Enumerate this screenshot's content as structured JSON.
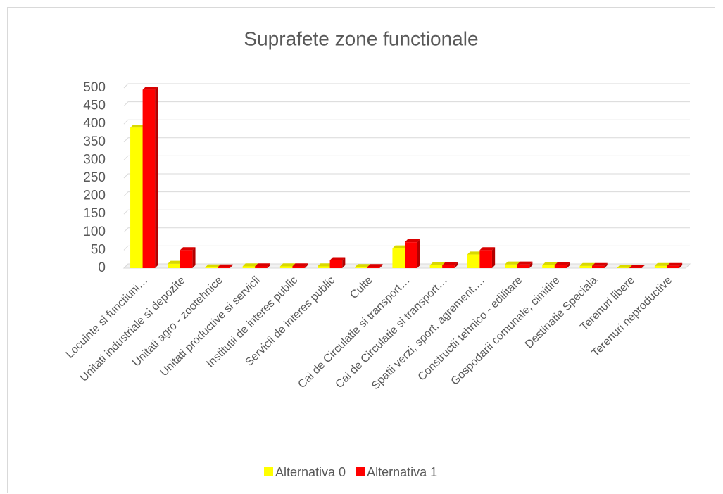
{
  "chart_data": {
    "type": "bar",
    "title": "Suprafete zone functionale",
    "categories": [
      "Locuinte si functiuni…",
      "Unitati industriale si depozite",
      "Unitati agro - zootehnice",
      "Unitati productive si servicii",
      "Institutii de interes public",
      "Servicii de interes public",
      "Culte",
      "Cai de Circulatie si transport…",
      "Cai de Circulatie si transport…",
      "Spatii verzi, sport, agrement,…",
      "Constructii tehnico - edilitare",
      "Gospodarii comunale, cimitire",
      "Destinatie Speciala",
      "Terenuri libere",
      "Terenuri neproductive"
    ],
    "series": [
      {
        "name": "Alternativa 0",
        "color": "#ffff00",
        "values": [
          390,
          12,
          2,
          5,
          5,
          5,
          3,
          55,
          8,
          38,
          10,
          8,
          6,
          1,
          6
        ]
      },
      {
        "name": "Alternativa 1",
        "color": "#ff0000",
        "values": [
          495,
          50,
          2,
          5,
          5,
          22,
          3,
          72,
          8,
          50,
          10,
          8,
          6,
          1,
          6
        ]
      }
    ],
    "ylim": [
      0,
      500
    ],
    "yticks": [
      0,
      50,
      100,
      150,
      200,
      250,
      300,
      350,
      400,
      450,
      500
    ],
    "grid": true,
    "legend": "bottom"
  }
}
